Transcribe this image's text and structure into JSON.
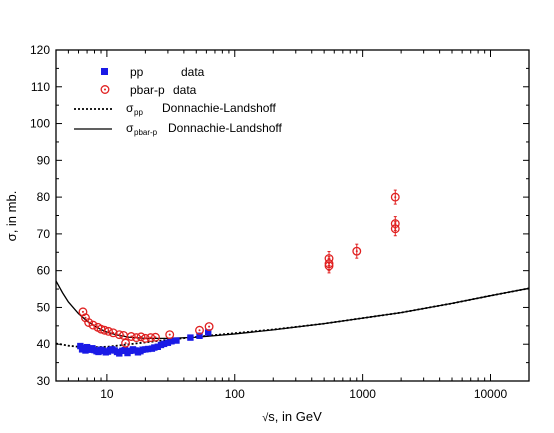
{
  "chart_data": {
    "type": "scatter",
    "title": "",
    "xlabel": {
      "prefix": "√",
      "text": "s, in GeV"
    },
    "ylabel": "σ, in mb.",
    "xscale": "log",
    "xlim": [
      4,
      20000
    ],
    "ylim": [
      30,
      120
    ],
    "xticks": [
      10,
      100,
      1000,
      10000
    ],
    "xtick_labels": [
      "10",
      "100",
      "1000",
      "10000"
    ],
    "yticks": [
      30,
      40,
      50,
      60,
      70,
      80,
      90,
      100,
      110,
      120
    ],
    "ytick_labels": [
      "30",
      "40",
      "50",
      "60",
      "70",
      "80",
      "90",
      "100",
      "110",
      "120"
    ],
    "grid": false,
    "legend_position": "top-left",
    "legend": [
      {
        "key": "pp",
        "marker": "filled-square",
        "label_main": "pp",
        "label_sub": "",
        "label_rest": "data"
      },
      {
        "key": "pbarp",
        "marker": "open-circle",
        "label_main": "pbar-p",
        "label_sub": "",
        "label_rest": "data"
      },
      {
        "key": "dl_pp",
        "marker": "dotted-line",
        "label_main": "σ",
        "label_sub": "pp",
        "label_rest": "Donnachie-Landshoff"
      },
      {
        "key": "dl_pbarp",
        "marker": "solid-line",
        "label_main": "σ",
        "label_sub": "pbar-p",
        "label_rest": "Donnachie-Landshoff"
      }
    ],
    "colors": {
      "pp": "#1a1ae6",
      "pbarp": "#e02020",
      "curves": "#000000"
    },
    "series": [
      {
        "name": "pp data",
        "marker": "filled-square",
        "points": [
          [
            6.2,
            39.5
          ],
          [
            6.4,
            38.6
          ],
          [
            6.6,
            39.0
          ],
          [
            6.8,
            38.3
          ],
          [
            7.0,
            39.2
          ],
          [
            7.2,
            38.8
          ],
          [
            7.4,
            38.5
          ],
          [
            7.7,
            38.9
          ],
          [
            8.0,
            38.4
          ],
          [
            8.3,
            38.1
          ],
          [
            8.6,
            37.9
          ],
          [
            9.0,
            38.5
          ],
          [
            9.4,
            38.2
          ],
          [
            9.8,
            37.8
          ],
          [
            10.2,
            38.0
          ],
          [
            10.6,
            38.4
          ],
          [
            11.0,
            38.6
          ],
          [
            11.5,
            38.3
          ],
          [
            12.0,
            37.9
          ],
          [
            12.5,
            37.5
          ],
          [
            13.2,
            38.2
          ],
          [
            13.8,
            38.4
          ],
          [
            14.5,
            37.6
          ],
          [
            15.2,
            38.2
          ],
          [
            16.0,
            38.6
          ],
          [
            16.8,
            38.3
          ],
          [
            17.5,
            37.8
          ],
          [
            18.3,
            38.1
          ],
          [
            19.0,
            38.5
          ],
          [
            20.0,
            38.6
          ],
          [
            21.0,
            38.7
          ],
          [
            22.5,
            38.8
          ],
          [
            23.5,
            39.1
          ],
          [
            25.0,
            39.3
          ],
          [
            26.5,
            39.8
          ],
          [
            28.0,
            40.1
          ],
          [
            30.0,
            40.4
          ],
          [
            32.0,
            40.8
          ],
          [
            35.0,
            41.0
          ],
          [
            45.0,
            41.8
          ],
          [
            53.0,
            42.3
          ],
          [
            62.0,
            43.2
          ]
        ]
      },
      {
        "name": "pbar-p data",
        "marker": "open-circle",
        "points": [
          [
            6.5,
            48.8
          ],
          [
            6.8,
            47.2
          ],
          [
            7.2,
            45.9
          ],
          [
            7.8,
            45.2
          ],
          [
            8.5,
            44.6
          ],
          [
            9.0,
            44.1
          ],
          [
            9.6,
            43.8
          ],
          [
            10.3,
            43.5
          ],
          [
            11.2,
            43.1
          ],
          [
            12.5,
            42.6
          ],
          [
            13.5,
            42.4
          ],
          [
            14.0,
            40.3
          ],
          [
            15.5,
            42.1
          ],
          [
            17.0,
            41.8
          ],
          [
            18.5,
            42.0
          ],
          [
            20.0,
            41.6
          ],
          [
            22.0,
            41.8
          ],
          [
            24.0,
            41.9
          ],
          [
            31.0,
            42.6
          ],
          [
            53.0,
            43.8
          ],
          [
            63.0,
            44.8
          ],
          [
            546,
            63.3
          ],
          [
            546,
            61.9
          ],
          [
            546,
            61.3
          ],
          [
            900,
            65.3
          ],
          [
            1800,
            80.0
          ],
          [
            1800,
            72.8
          ],
          [
            1800,
            71.4
          ]
        ]
      },
      {
        "name": "σpp Donnachie-Landshoff",
        "style": "dotted",
        "points": [
          [
            4,
            40.2
          ],
          [
            5,
            39.6
          ],
          [
            6,
            39.3
          ],
          [
            7,
            39.2
          ],
          [
            8,
            39.2
          ],
          [
            10,
            39.3
          ],
          [
            12,
            39.6
          ],
          [
            15,
            40.0
          ],
          [
            20,
            40.5
          ],
          [
            30,
            41.2
          ],
          [
            50,
            42.0
          ],
          [
            100,
            43.0
          ],
          [
            200,
            44.0
          ],
          [
            500,
            45.6
          ],
          [
            1000,
            47.1
          ],
          [
            2000,
            48.6
          ],
          [
            5000,
            51.1
          ],
          [
            10000,
            53.2
          ],
          [
            20000,
            55.2
          ]
        ]
      },
      {
        "name": "σpbar-p Donnachie-Landshoff",
        "style": "solid",
        "points": [
          [
            4,
            57.2
          ],
          [
            4.5,
            54.0
          ],
          [
            5,
            51.5
          ],
          [
            6,
            48.3
          ],
          [
            7,
            46.3
          ],
          [
            8,
            45.0
          ],
          [
            9,
            44.0
          ],
          [
            10,
            43.3
          ],
          [
            12,
            42.5
          ],
          [
            15,
            41.9
          ],
          [
            20,
            41.6
          ],
          [
            30,
            41.6
          ],
          [
            50,
            41.9
          ],
          [
            100,
            42.8
          ],
          [
            200,
            43.9
          ],
          [
            500,
            45.6
          ],
          [
            1000,
            47.1
          ],
          [
            2000,
            48.6
          ],
          [
            5000,
            51.1
          ],
          [
            10000,
            53.2
          ],
          [
            20000,
            55.2
          ]
        ]
      }
    ]
  }
}
